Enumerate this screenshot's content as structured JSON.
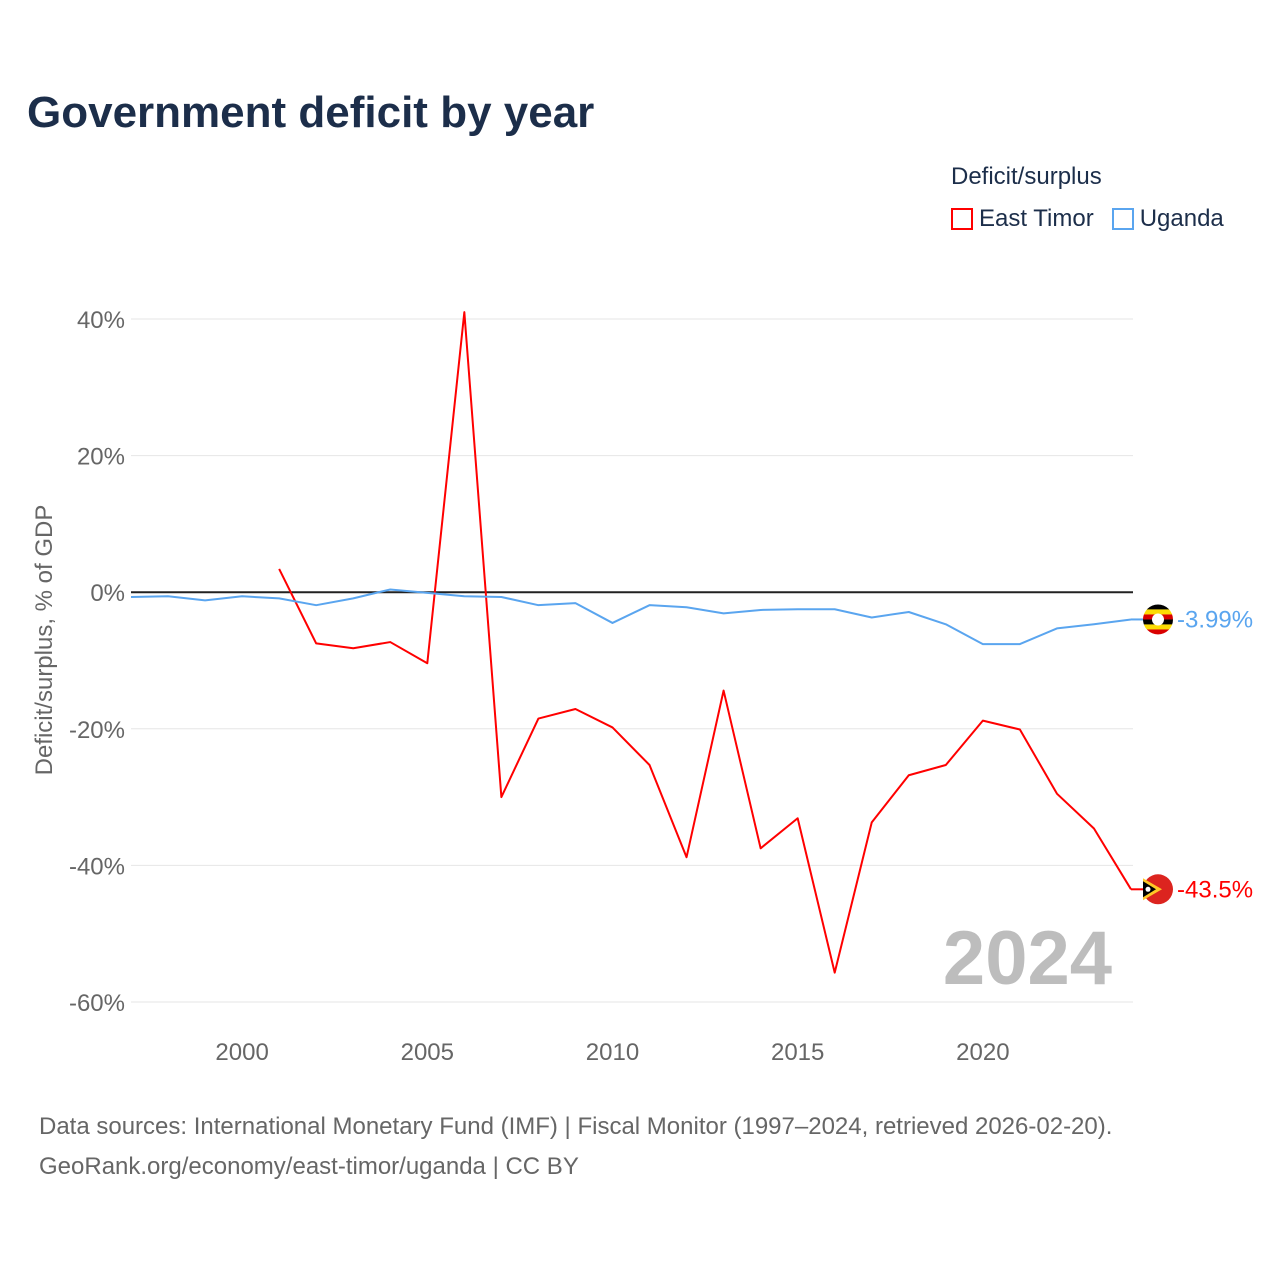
{
  "title": "Government deficit by year",
  "legend": {
    "title": "Deficit/surplus",
    "items": [
      {
        "label": "East Timor",
        "color": "#ff0000"
      },
      {
        "label": "Uganda",
        "color": "#5aa5ef"
      }
    ]
  },
  "source_line1": "Data sources: International Monetary Fund (IMF) | Fiscal Monitor (1997–2024, retrieved 2026-02-20).",
  "source_line2": "GeoRank.org/economy/east-timor/uganda | CC BY",
  "chart_data": {
    "type": "line",
    "title": "Government deficit by year",
    "xlabel": "",
    "ylabel": "Deficit/surplus, % of GDP",
    "xlim": [
      1997,
      2024
    ],
    "ylim": [
      -60,
      40
    ],
    "x_ticks": [
      2000,
      2005,
      2010,
      2015,
      2020
    ],
    "y_ticks": [
      {
        "v": 40,
        "label": "40%"
      },
      {
        "v": 20,
        "label": "20%"
      },
      {
        "v": 0,
        "label": "0%"
      },
      {
        "v": -20,
        "label": "-20%"
      },
      {
        "v": -40,
        "label": "-40%"
      },
      {
        "v": -60,
        "label": "-60%"
      }
    ],
    "year_watermark": "2024",
    "series": [
      {
        "name": "East Timor",
        "color": "#ff0000",
        "end_label": "-43.5%",
        "x": [
          2001,
          2002,
          2003,
          2004,
          2005,
          2006,
          2007,
          2008,
          2009,
          2010,
          2011,
          2012,
          2013,
          2014,
          2015,
          2016,
          2017,
          2018,
          2019,
          2020,
          2021,
          2022,
          2023,
          2024
        ],
        "values": [
          3.4,
          -7.5,
          -8.2,
          -7.3,
          -10.4,
          41.0,
          -30.0,
          -18.5,
          -17.1,
          -19.8,
          -25.3,
          -38.8,
          -14.4,
          -37.5,
          -33.1,
          -55.7,
          -33.7,
          -26.8,
          -25.3,
          -18.8,
          -20.1,
          -29.5,
          -34.6,
          -43.5
        ]
      },
      {
        "name": "Uganda",
        "color": "#5aa5ef",
        "end_label": "-3.99%",
        "x": [
          1997,
          1998,
          1999,
          2000,
          2001,
          2002,
          2003,
          2004,
          2005,
          2006,
          2007,
          2008,
          2009,
          2010,
          2011,
          2012,
          2013,
          2014,
          2015,
          2016,
          2017,
          2018,
          2019,
          2020,
          2021,
          2022,
          2023,
          2024
        ],
        "values": [
          -0.7,
          -0.6,
          -1.2,
          -0.6,
          -0.9,
          -1.9,
          -0.9,
          0.4,
          -0.1,
          -0.6,
          -0.7,
          -1.9,
          -1.6,
          -4.5,
          -1.9,
          -2.2,
          -3.1,
          -2.6,
          -2.5,
          -2.5,
          -3.7,
          -2.9,
          -4.7,
          -7.6,
          -7.6,
          -5.3,
          -4.7,
          -3.99
        ]
      }
    ]
  }
}
